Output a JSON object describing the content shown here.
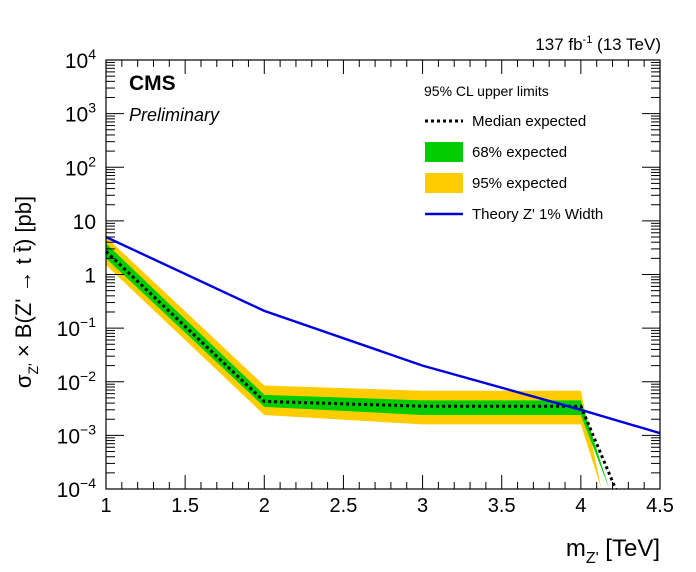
{
  "header": {
    "lumi_value": "137 fb",
    "lumi_exponent": "-1",
    "lumi_energy": " (13 TeV)"
  },
  "labels": {
    "experiment": "CMS",
    "status": "Preliminary"
  },
  "axes": {
    "x_title_main": "m",
    "x_title_sub": "Z'",
    "x_title_unit": " [TeV]",
    "y_title_sigma": "σ",
    "y_title_sub": "Z'",
    "y_title_rest": " × B(Z' → t t̄) [pb]"
  },
  "chart_data": {
    "type": "line",
    "x_scale": "linear",
    "y_scale": "log",
    "xlim": [
      1,
      4.5
    ],
    "ylim": [
      0.0001,
      10000
    ],
    "x_ticks": [
      "1",
      "1.5",
      "2",
      "2.5",
      "3",
      "3.5",
      "4",
      "4.5"
    ],
    "y_ticks": [
      {
        "base": "10",
        "exp": "−4",
        "value": 0.0001
      },
      {
        "base": "10",
        "exp": "−3",
        "value": 0.001
      },
      {
        "base": "10",
        "exp": "−2",
        "value": 0.01
      },
      {
        "base": "10",
        "exp": "−1",
        "value": 0.1
      },
      {
        "base": "1",
        "exp": "",
        "value": 1
      },
      {
        "base": "10",
        "exp": "",
        "value": 10
      },
      {
        "base": "10",
        "exp": "2",
        "value": 100
      },
      {
        "base": "10",
        "exp": "3",
        "value": 1000
      },
      {
        "base": "10",
        "exp": "4",
        "value": 10000
      }
    ],
    "legend": {
      "title": "95% CL upper limits",
      "position": "top-right"
    },
    "series": [
      {
        "name": "Median expected",
        "style": "dotted",
        "color": "#000000",
        "points": [
          [
            1,
            2.7
          ],
          [
            2,
            0.0043
          ],
          [
            3,
            0.0035
          ],
          [
            4,
            0.0035
          ],
          [
            4.22,
            0.0001
          ]
        ]
      },
      {
        "name": "68% expected",
        "style": "band",
        "color": "#00cc00",
        "points": [
          [
            1,
            2.0,
            3.8
          ],
          [
            2,
            0.0034,
            0.0057
          ],
          [
            3,
            0.0024,
            0.0045
          ],
          [
            4,
            0.0024,
            0.0045
          ],
          [
            4.18,
            0.0001,
            0.0001
          ]
        ]
      },
      {
        "name": "95% expected",
        "style": "band",
        "color": "#ffcc00",
        "points": [
          [
            1,
            1.5,
            5.0
          ],
          [
            2,
            0.0024,
            0.0085
          ],
          [
            3,
            0.0016,
            0.0068
          ],
          [
            4,
            0.0016,
            0.0068
          ],
          [
            4.13,
            0.0001,
            0.0001
          ]
        ]
      },
      {
        "name": "Theory Z' 1% Width",
        "style": "solid",
        "color": "#0000dd",
        "points": [
          [
            1,
            5.0
          ],
          [
            2,
            0.21
          ],
          [
            3,
            0.02
          ],
          [
            4,
            0.003
          ],
          [
            4.5,
            0.0011
          ]
        ]
      }
    ]
  }
}
